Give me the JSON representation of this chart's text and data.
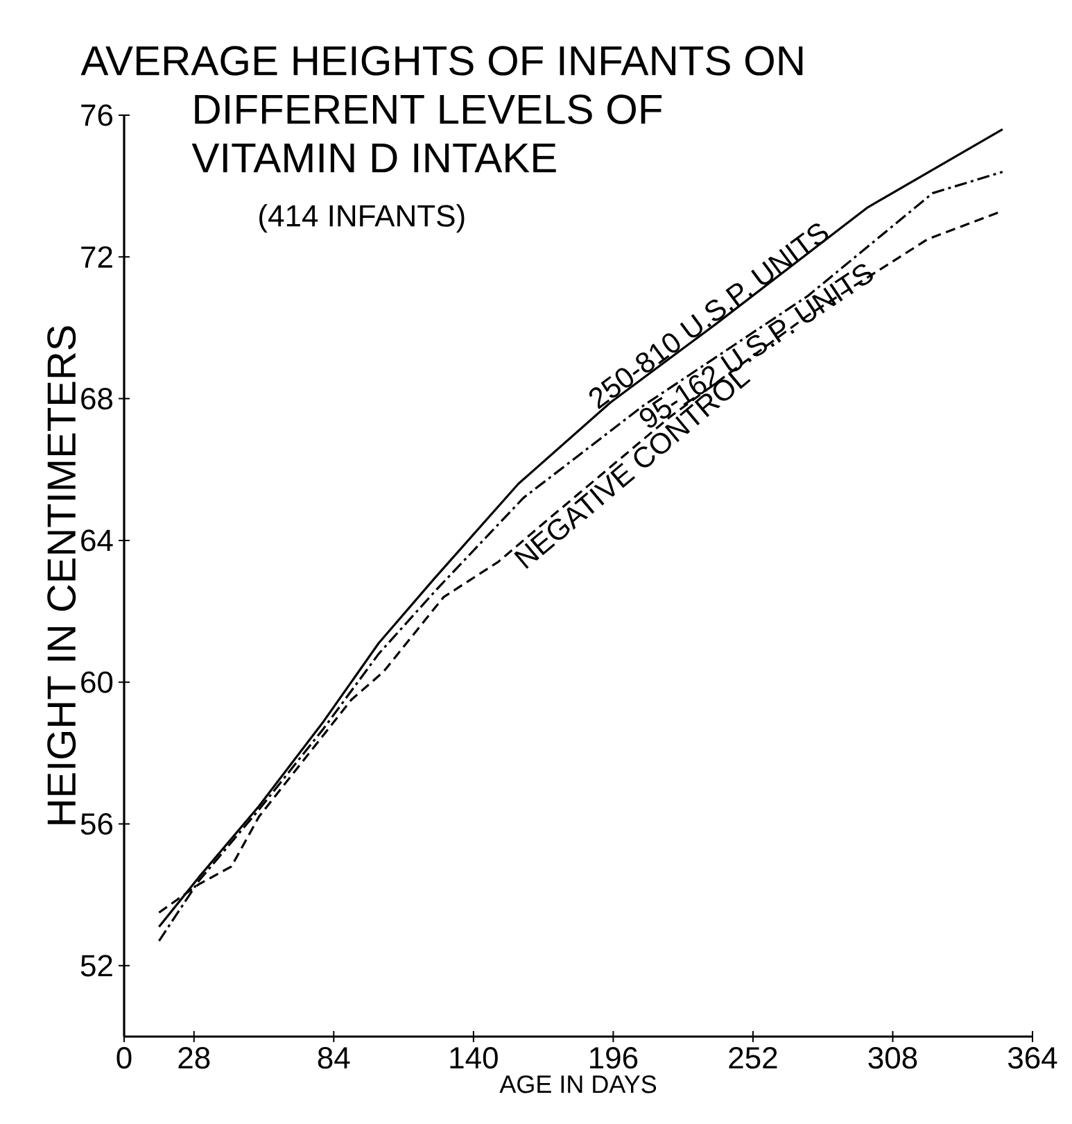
{
  "chart_data": {
    "type": "line",
    "title": "AVERAGE HEIGHTS OF INFANTS ON DIFFERENT LEVELS OF VITAMIN D INTAKE",
    "subtitle": "(414 INFANTS)",
    "xlabel": "AGE IN DAYS",
    "ylabel": "HEIGHT IN CENTIMETERS",
    "xlim": [
      0,
      364
    ],
    "xticks": [
      0,
      28,
      84,
      140,
      196,
      252,
      308,
      364
    ],
    "ylim": [
      50,
      76
    ],
    "yticks": [
      52,
      56,
      60,
      64,
      68,
      72,
      76
    ],
    "grid": false,
    "marker": "none",
    "series": [
      {
        "name": "250-810 U.S.P. UNITS",
        "color": "#000000",
        "line_style": "solid",
        "x": [
          14,
          30,
          54,
          80,
          102,
          124,
          158,
          195,
          237,
          298,
          352
        ],
        "values": [
          53.1,
          54.5,
          56.5,
          58.9,
          61.1,
          62.9,
          65.6,
          67.9,
          70.1,
          73.4,
          75.6
        ]
      },
      {
        "name": "95-162 U.S.P. UNITS",
        "color": "#000000",
        "line_style": "dashdot",
        "x": [
          14,
          30,
          54,
          80,
          102,
          125,
          160,
          208,
          274,
          324,
          352
        ],
        "values": [
          52.7,
          54.4,
          56.4,
          58.7,
          60.8,
          62.6,
          65.2,
          67.8,
          70.9,
          73.8,
          74.4
        ]
      },
      {
        "name": "NEGATIVE CONTROL",
        "color": "#000000",
        "line_style": "dashed",
        "x": [
          14,
          30,
          43,
          54,
          91,
          104,
          128,
          150,
          170,
          219,
          274,
          322,
          352
        ],
        "values": [
          53.5,
          54.3,
          54.8,
          56.2,
          59.5,
          60.3,
          62.4,
          63.4,
          64.6,
          67.5,
          70.35,
          72.5,
          73.3
        ]
      }
    ]
  }
}
